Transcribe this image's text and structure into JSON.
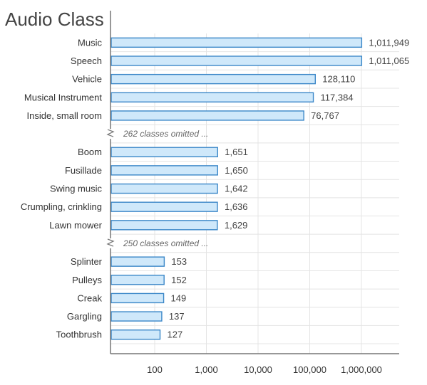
{
  "chart_data": {
    "type": "bar",
    "orientation": "horizontal",
    "title": "Audio Class",
    "xscale": "log",
    "xlim": [
      10,
      4000000
    ],
    "xticks": [
      {
        "value": 100,
        "label": "100"
      },
      {
        "value": 1000,
        "label": "1,000"
      },
      {
        "value": 10000,
        "label": "10,000"
      },
      {
        "value": 100000,
        "label": "100,000"
      },
      {
        "value": 1000000,
        "label": "1,000,000"
      }
    ],
    "grid": true,
    "colors": {
      "bar_fill": "#cfe8fa",
      "bar_stroke": "#3b87c8",
      "grid": "#e4e4e4",
      "axis": "#777777"
    },
    "rows": [
      {
        "kind": "bar",
        "category": "Music",
        "value": 1011949,
        "label": "1,011,949"
      },
      {
        "kind": "bar",
        "category": "Speech",
        "value": 1011065,
        "label": "1,011,065"
      },
      {
        "kind": "bar",
        "category": "Vehicle",
        "value": 128110,
        "label": "128,110"
      },
      {
        "kind": "bar",
        "category": "Musical Instrument",
        "value": 117384,
        "label": "117,384"
      },
      {
        "kind": "bar",
        "category": "Inside, small room",
        "value": 76767,
        "label": "76,767"
      },
      {
        "kind": "gap",
        "text": "262 classes omitted ..."
      },
      {
        "kind": "bar",
        "category": "Boom",
        "value": 1651,
        "label": "1,651"
      },
      {
        "kind": "bar",
        "category": "Fusillade",
        "value": 1650,
        "label": "1,650"
      },
      {
        "kind": "bar",
        "category": "Swing music",
        "value": 1642,
        "label": "1,642"
      },
      {
        "kind": "bar",
        "category": "Crumpling, crinkling",
        "value": 1636,
        "label": "1,636"
      },
      {
        "kind": "bar",
        "category": "Lawn mower",
        "value": 1629,
        "label": "1,629"
      },
      {
        "kind": "gap",
        "text": "250 classes omitted ..."
      },
      {
        "kind": "bar",
        "category": "Splinter",
        "value": 153,
        "label": "153"
      },
      {
        "kind": "bar",
        "category": "Pulleys",
        "value": 152,
        "label": "152"
      },
      {
        "kind": "bar",
        "category": "Creak",
        "value": 149,
        "label": "149"
      },
      {
        "kind": "bar",
        "category": "Gargling",
        "value": 137,
        "label": "137"
      },
      {
        "kind": "bar",
        "category": "Toothbrush",
        "value": 127,
        "label": "127"
      }
    ]
  }
}
